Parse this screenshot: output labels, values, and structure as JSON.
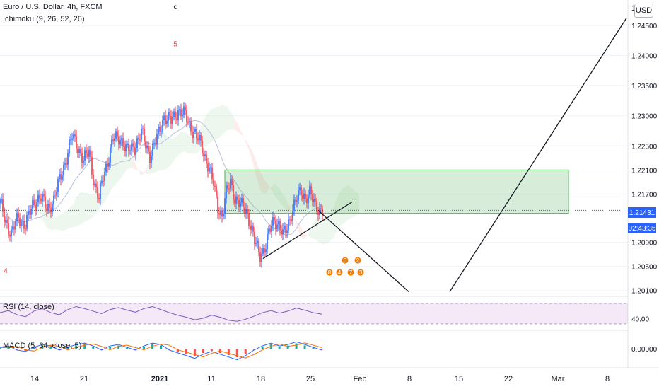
{
  "legend": {
    "symbol": "Euro / U.S. Dollar, 4h, FXCM",
    "indicator": "Ichimoku (9, 26, 52, 26)"
  },
  "currency_button": "USD",
  "current_price": "1.21431",
  "countdown": "02:43:35",
  "top_price_partial": "1.",
  "chart_data": [
    {
      "type": "candlestick",
      "title": "Euro / U.S. Dollar, 4h, FXCM",
      "x_ticks": [
        "14",
        "21",
        "2021",
        "11",
        "18",
        "25",
        "Feb",
        "8",
        "15",
        "22",
        "Mar",
        "8"
      ],
      "y_ticks": [
        "1.24500",
        "1.24000",
        "1.23500",
        "1.23000",
        "1.22500",
        "1.22100",
        "1.21700",
        "1.20900",
        "1.20500",
        "1.20100"
      ],
      "ylim": [
        1.2005,
        1.2478
      ],
      "current_price": 1.21431,
      "price_path": [
        [
          0,
          1.2155
        ],
        [
          3,
          1.213
        ],
        [
          8,
          1.2105
        ],
        [
          13,
          1.213
        ],
        [
          18,
          1.212
        ],
        [
          23,
          1.215
        ],
        [
          28,
          1.2168
        ],
        [
          33,
          1.2145
        ],
        [
          38,
          1.216
        ],
        [
          43,
          1.22
        ],
        [
          48,
          1.224
        ],
        [
          51,
          1.2265
        ],
        [
          55,
          1.225
        ],
        [
          59,
          1.2225
        ],
        [
          63,
          1.224
        ],
        [
          67,
          1.2185
        ],
        [
          70,
          1.216
        ],
        [
          73,
          1.22
        ],
        [
          76,
          1.2225
        ],
        [
          80,
          1.226
        ],
        [
          85,
          1.2265
        ],
        [
          90,
          1.224
        ],
        [
          95,
          1.225
        ],
        [
          100,
          1.227
        ],
        [
          106,
          1.2235
        ],
        [
          111,
          1.2262
        ],
        [
          116,
          1.23
        ],
        [
          121,
          1.229
        ],
        [
          126,
          1.231
        ],
        [
          131,
          1.23
        ],
        [
          134,
          1.2285
        ],
        [
          138,
          1.227
        ],
        [
          143,
          1.2245
        ],
        [
          147,
          1.222
        ],
        [
          151,
          1.2185
        ],
        [
          154,
          1.215
        ],
        [
          157,
          1.2135
        ],
        [
          160,
          1.217
        ],
        [
          163,
          1.219
        ],
        [
          166,
          1.2165
        ],
        [
          170,
          1.215
        ],
        [
          174,
          1.2145
        ],
        [
          177,
          1.212
        ],
        [
          180,
          1.209
        ],
        [
          184,
          1.207
        ],
        [
          188,
          1.2085
        ],
        [
          191,
          1.211
        ],
        [
          194,
          1.213
        ],
        [
          197,
          1.212
        ],
        [
          200,
          1.21
        ],
        [
          203,
          1.2115
        ],
        [
          206,
          1.214
        ],
        [
          210,
          1.2162
        ],
        [
          213,
          1.2175
        ],
        [
          216,
          1.2165
        ],
        [
          219,
          1.217
        ],
        [
          222,
          1.2155
        ],
        [
          226,
          1.2145
        ],
        [
          228,
          1.2143
        ]
      ],
      "zone": {
        "top": 1.221,
        "bottom": 1.2138,
        "start_index": 159,
        "end_index": 402
      },
      "trendlines": [
        {
          "from": [
            186,
            1.2063
          ],
          "to": [
            249,
            1.2157
          ]
        },
        {
          "from": [
            225,
            1.2143
          ],
          "to": [
            289,
            1.2008
          ]
        },
        {
          "from": [
            318,
            1.2008
          ],
          "to": [
            443,
            1.2462
          ]
        }
      ],
      "annotations": [
        {
          "text": "c",
          "index": 124,
          "price": 1.2477
        },
        {
          "text": "5",
          "index": 124,
          "price": 1.2415
        },
        {
          "text": "4",
          "index": 4,
          "price": 1.2039
        }
      ],
      "event_icons": [
        {
          "text": "6",
          "index": 244,
          "price": 1.206
        },
        {
          "text": "2",
          "index": 253,
          "price": 1.206
        },
        {
          "text": "8",
          "index": 233,
          "price": 1.204
        },
        {
          "text": "4",
          "index": 240,
          "price": 1.204
        },
        {
          "text": "7",
          "index": 248,
          "price": 1.204
        },
        {
          "text": "3",
          "index": 255,
          "price": 1.204
        }
      ]
    },
    {
      "type": "line",
      "title": "RSI (14, close)",
      "y_ticks": [
        "40.00"
      ],
      "band": [
        30,
        70
      ],
      "ylim": [
        20,
        80
      ],
      "values": [
        52,
        56,
        48,
        44,
        55,
        60,
        52,
        48,
        58,
        64,
        60,
        55,
        50,
        58,
        62,
        57,
        53,
        60,
        64,
        58,
        52,
        47,
        43,
        38,
        41,
        47,
        43,
        37,
        35,
        39,
        45,
        52,
        56,
        51,
        55,
        61,
        57,
        52,
        49
      ]
    },
    {
      "type": "bar",
      "title": "MACD (5, 34, close, 5)",
      "y_ticks": [
        "0.00000"
      ],
      "ylim": [
        -0.02,
        0.02
      ],
      "histogram": [
        0.001,
        0.002,
        -0.001,
        -0.002,
        0.001,
        0.003,
        0.002,
        -0.001,
        0.001,
        0.003,
        0.004,
        0.002,
        -0.001,
        0.002,
        0.003,
        0.001,
        -0.001,
        0.002,
        0.004,
        0.003,
        -0.001,
        -0.003,
        -0.005,
        -0.007,
        -0.004,
        -0.002,
        -0.004,
        -0.006,
        -0.008,
        -0.005,
        -0.001,
        0.002,
        0.004,
        0.002,
        0.003,
        0.005,
        0.003,
        0.001,
        -0.001
      ]
    }
  ]
}
